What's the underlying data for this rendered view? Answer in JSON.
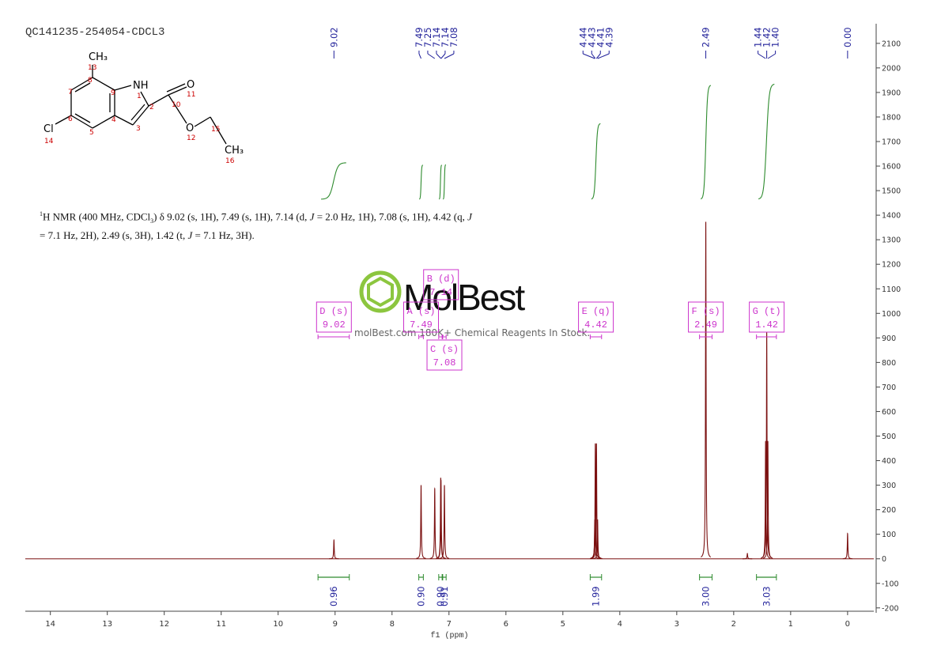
{
  "title": "QC141235-254054-CDCL3",
  "structure": {
    "labels": [
      "CH₃",
      "13",
      "8",
      "7",
      "9",
      "NH",
      "1",
      "2",
      "10",
      "O",
      "11",
      "6",
      "4",
      "3",
      "5",
      "O",
      "12",
      "15",
      "Cl",
      "14",
      "CH₃",
      "16"
    ]
  },
  "description": [
    "1",
    "H NMR (400 MHz, CDCl",
    "3",
    ") δ 9.02 (s, 1H), 7.49 (s, 1H), 7.14 (d, ",
    "J",
    " = 2.0 Hz, 1H), 7.08 (s, 1H), 4.42 (q, ",
    "J",
    "= 7.1 Hz, 2H), 2.49 (s, 3H), 1.42 (t, ",
    "J",
    " = 7.1 Hz, 3H)."
  ],
  "watermark": {
    "brand": "MolBest",
    "tagline": "molBest.com 180K+ Chemical Reagents In Stock."
  },
  "chart_data": {
    "type": "nmr",
    "x_label": "f1 (ppm)",
    "xlim": [
      14.44,
      -0.46
    ],
    "xticks": [
      14,
      13,
      12,
      11,
      10,
      9,
      8,
      7,
      6,
      5,
      4,
      3,
      2,
      1,
      0
    ],
    "ylim": [
      -220,
      2180
    ],
    "yticks": [
      -200,
      -100,
      0,
      100,
      200,
      300,
      400,
      500,
      600,
      700,
      800,
      900,
      1000,
      1100,
      1200,
      1300,
      1400,
      1500,
      1600,
      1700,
      1800,
      1900,
      2000,
      2100
    ],
    "color": "#7b1010",
    "peaks": {
      "x": [
        9.02,
        7.49,
        7.25,
        7.145,
        7.14,
        7.08,
        4.44,
        4.43,
        4.41,
        4.39,
        2.49,
        1.76,
        1.44,
        1.42,
        1.4,
        0.0
      ],
      "values": [
        77,
        300,
        286,
        330,
        320,
        300,
        160,
        470,
        470,
        160,
        1373,
        22,
        480,
        923,
        480,
        103
      ]
    },
    "peak_labels": {
      "color": "#1f1f99",
      "values": [
        9.02,
        7.49,
        7.25,
        7.14,
        7.14,
        7.08,
        4.44,
        4.43,
        4.41,
        4.39,
        2.49,
        1.44,
        1.42,
        1.4,
        0
      ],
      "value_labels": [
        "9.02",
        "7.49",
        "7.25",
        "7.14",
        "7.14",
        "7.08",
        "4.44",
        "4.43",
        "4.41",
        "4.39",
        "2.49",
        "1.44",
        "1.42",
        "1.40",
        "0.00"
      ]
    },
    "integrals": {
      "color": "#2e8b2e",
      "ranges": [
        [
          9.3,
          8.75
        ],
        [
          7.53,
          7.45
        ],
        [
          7.18,
          7.12
        ],
        [
          7.11,
          7.05
        ],
        [
          4.52,
          4.32
        ],
        [
          2.6,
          2.38
        ],
        [
          1.6,
          1.25
        ]
      ],
      "values": [
        0.96,
        0.9,
        0.9,
        0.91,
        1.99,
        3,
        3.03
      ],
      "value_labels": [
        "0.96",
        "0.90",
        "0.90",
        "0.91",
        "1.99",
        "3.00",
        "3.03"
      ]
    },
    "multiplets": {
      "color": "#cc33cc",
      "names": [
        "D (s)",
        "A (s)",
        "B (d)",
        "C (s)",
        "E (q)",
        "F (s)",
        "G (t)"
      ],
      "shifts": [
        9.02,
        7.49,
        7.14,
        7.08,
        4.42,
        2.49,
        1.42
      ],
      "ranges": [
        [
          9.3,
          8.75
        ],
        [
          7.53,
          7.45
        ],
        [
          7.18,
          7.12
        ],
        [
          7.11,
          7.05
        ],
        [
          4.52,
          4.32
        ],
        [
          2.6,
          2.38
        ],
        [
          1.6,
          1.25
        ]
      ]
    }
  }
}
